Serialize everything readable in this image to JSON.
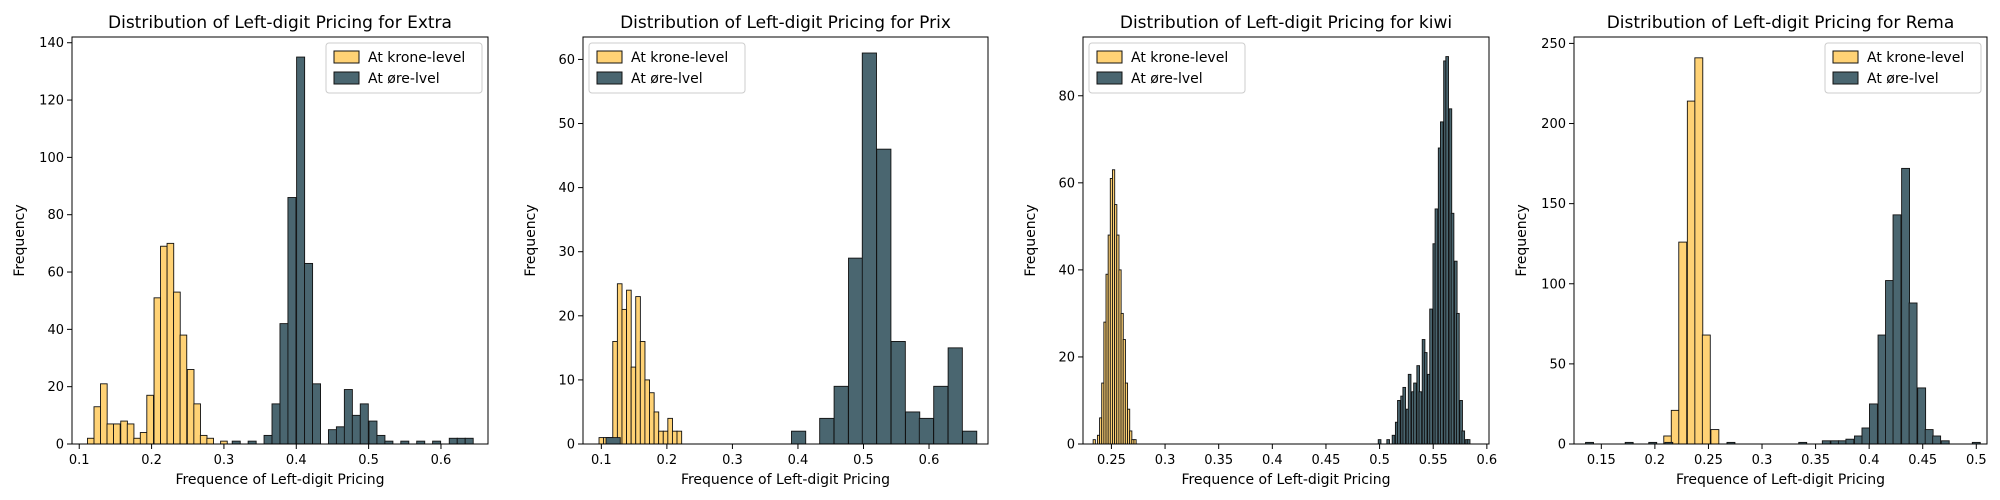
{
  "colors": {
    "krone": "#FFD275",
    "ore": "#4A6670",
    "edge": "#111111"
  },
  "chart_data": [
    {
      "type": "bar",
      "title": "Distribution of Left-digit Pricing for Extra",
      "xlabel": "Frequence of Left-digit Pricing",
      "ylabel": "Frequency",
      "xlim": [
        0.09,
        0.665
      ],
      "ylim": [
        0,
        142
      ],
      "xticks": [
        0.1,
        0.2,
        0.3,
        0.4,
        0.5,
        0.6
      ],
      "yticks": [
        0,
        20,
        40,
        60,
        80,
        100,
        120,
        140
      ],
      "legend": {
        "position": "top-right",
        "entries": [
          "At krone-level",
          "At øre-lvel"
        ]
      },
      "series": [
        {
          "name": "At krone-level",
          "bin_width": 0.0092,
          "x": [
            0.116,
            0.125,
            0.134,
            0.143,
            0.152,
            0.162,
            0.171,
            0.18,
            0.189,
            0.198,
            0.208,
            0.217,
            0.226,
            0.235,
            0.244,
            0.254,
            0.263,
            0.272,
            0.281,
            0.3
          ],
          "values": [
            2,
            13,
            21,
            7,
            7,
            8,
            7,
            2,
            4,
            17,
            51,
            69,
            70,
            53,
            38,
            26,
            14,
            3,
            2,
            1
          ]
        },
        {
          "name": "At øre-lvel",
          "bin_width": 0.0111,
          "x": [
            0.317,
            0.339,
            0.361,
            0.372,
            0.383,
            0.394,
            0.406,
            0.417,
            0.428,
            0.45,
            0.461,
            0.472,
            0.483,
            0.494,
            0.506,
            0.517,
            0.528,
            0.55,
            0.572,
            0.594,
            0.617,
            0.628,
            0.639
          ],
          "values": [
            1,
            1,
            3,
            14,
            42,
            86,
            135,
            63,
            21,
            5,
            6,
            19,
            10,
            14,
            8,
            3,
            1,
            1,
            1,
            1,
            2,
            2,
            2
          ]
        }
      ]
    },
    {
      "type": "bar",
      "title": "Distribution of Left-digit Pricing for Prix",
      "xlabel": "Frequence of Left-digit Pricing",
      "ylabel": "Frequency",
      "xlim": [
        0.072,
        0.69
      ],
      "ylim": [
        0,
        63.5
      ],
      "xticks": [
        0.1,
        0.2,
        0.3,
        0.4,
        0.5,
        0.6
      ],
      "yticks": [
        0,
        10,
        20,
        30,
        40,
        50,
        60
      ],
      "legend": {
        "position": "top-left",
        "entries": [
          "At krone-level",
          "At øre-lvel"
        ]
      },
      "series": [
        {
          "name": "At krone-level",
          "bin_width": 0.0071,
          "x": [
            0.1,
            0.107,
            0.114,
            0.121,
            0.128,
            0.135,
            0.142,
            0.149,
            0.156,
            0.163,
            0.17,
            0.177,
            0.184,
            0.191,
            0.198,
            0.205,
            0.212,
            0.219
          ],
          "values": [
            1,
            1,
            1,
            16,
            25,
            21,
            24,
            12,
            23,
            16,
            10,
            8,
            5,
            2,
            2,
            4,
            2,
            2
          ]
        },
        {
          "name": "At øre-lvel",
          "bin_width": 0.0217,
          "x": [
            0.118,
            0.401,
            0.444,
            0.466,
            0.488,
            0.509,
            0.531,
            0.553,
            0.575,
            0.596,
            0.618,
            0.64,
            0.662
          ],
          "values": [
            1,
            2,
            4,
            9,
            29,
            61,
            46,
            16,
            5,
            4,
            9,
            15,
            2
          ]
        }
      ]
    },
    {
      "type": "bar",
      "title": "Distribution of Left-digit Pricing for kiwi",
      "xlabel": "Frequence of Left-digit Pricing",
      "ylabel": "Frequency",
      "xlim": [
        0.2235,
        0.602
      ],
      "ylim": [
        0,
        93.5
      ],
      "xticks": [
        0.25,
        0.3,
        0.35,
        0.4,
        0.45,
        0.5,
        0.55,
        0.6
      ],
      "yticks": [
        0,
        20,
        40,
        60,
        80
      ],
      "legend": {
        "position": "top-left",
        "entries": [
          "At krone-level",
          "At øre-lvel"
        ]
      },
      "series": [
        {
          "name": "At krone-level",
          "bin_width": 0.0021,
          "x": [
            0.234,
            0.238,
            0.24,
            0.242,
            0.244,
            0.246,
            0.248,
            0.25,
            0.252,
            0.254,
            0.256,
            0.258,
            0.26,
            0.262,
            0.264,
            0.266,
            0.268,
            0.27,
            0.272
          ],
          "values": [
            1,
            2,
            6,
            14,
            28,
            39,
            48,
            61,
            63,
            55,
            48,
            40,
            30,
            24,
            14,
            8,
            3,
            1,
            1
          ]
        },
        {
          "name": "At øre-lvel",
          "bin_width": 0.0025,
          "x": [
            0.5,
            0.508,
            0.513,
            0.516,
            0.518,
            0.521,
            0.523,
            0.526,
            0.528,
            0.531,
            0.533,
            0.536,
            0.538,
            0.541,
            0.543,
            0.546,
            0.548,
            0.551,
            0.553,
            0.556,
            0.558,
            0.561,
            0.563,
            0.566,
            0.568,
            0.571,
            0.573,
            0.576,
            0.578,
            0.581,
            0.583
          ],
          "values": [
            1,
            1,
            2,
            5,
            10,
            11,
            13,
            8,
            16,
            12,
            14,
            18,
            12,
            24,
            21,
            16,
            31,
            46,
            54,
            68,
            74,
            88,
            89,
            77,
            53,
            42,
            30,
            10,
            3,
            1,
            1
          ]
        }
      ]
    },
    {
      "type": "bar",
      "title": "Distribution of Left-digit Pricing for Rema",
      "xlabel": "Frequence of Left-digit Pricing",
      "ylabel": "Frequency",
      "xlim": [
        0.1245,
        0.51
      ],
      "ylim": [
        0,
        254
      ],
      "xticks": [
        0.15,
        0.2,
        0.25,
        0.3,
        0.35,
        0.4,
        0.45,
        0.5
      ],
      "yticks": [
        0,
        50,
        100,
        150,
        200,
        250
      ],
      "legend": {
        "position": "top-right",
        "entries": [
          "At krone-level",
          "At øre-lvel"
        ]
      },
      "series": [
        {
          "name": "At krone-level",
          "bin_width": 0.0074,
          "x": [
            0.212,
            0.219,
            0.226,
            0.234,
            0.241,
            0.248,
            0.256
          ],
          "values": [
            5,
            21,
            126,
            214,
            241,
            68,
            9
          ]
        },
        {
          "name": "At øre-lvel",
          "bin_width": 0.0074,
          "x": [
            0.139,
            0.176,
            0.198,
            0.213,
            0.271,
            0.338,
            0.36,
            0.368,
            0.375,
            0.382,
            0.39,
            0.397,
            0.404,
            0.412,
            0.419,
            0.426,
            0.434,
            0.441,
            0.449,
            0.456,
            0.463,
            0.471,
            0.5
          ],
          "values": [
            1,
            1,
            1,
            1,
            1,
            1,
            2,
            2,
            2,
            3,
            5,
            10,
            25,
            68,
            102,
            143,
            172,
            88,
            35,
            9,
            5,
            2,
            1
          ]
        }
      ]
    }
  ]
}
